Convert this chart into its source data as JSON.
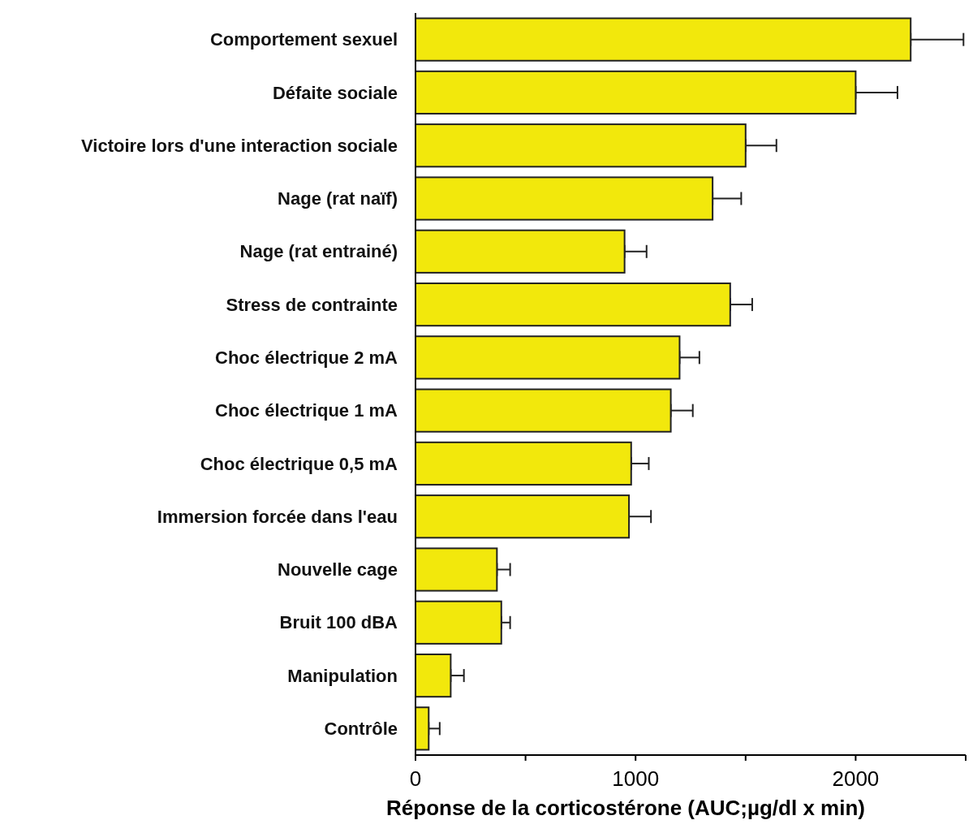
{
  "chart_data": {
    "type": "bar",
    "orientation": "horizontal",
    "xlabel": "Réponse de la corticostérone (AUC;µg/dl x min)",
    "categories": [
      "Comportement sexuel",
      "Défaite sociale",
      "Victoire lors d'une interaction sociale",
      "Nage (rat naïf)",
      "Nage (rat entrainé)",
      "Stress de contrainte",
      "Choc électrique 2 mA",
      "Choc électrique 1 mA",
      "Choc électrique 0,5 mA",
      "Immersion  forcée dans l'eau",
      "Nouvelle cage",
      "Bruit 100 dBA",
      "Manipulation",
      "Contrôle"
    ],
    "values": [
      2250,
      2000,
      1500,
      1350,
      950,
      1430,
      1200,
      1160,
      980,
      970,
      370,
      390,
      160,
      60
    ],
    "errors": [
      [
        2250,
        2490
      ],
      [
        2000,
        2190
      ],
      [
        1500,
        1640
      ],
      [
        1350,
        1480
      ],
      [
        950,
        1050
      ],
      [
        1430,
        1530
      ],
      [
        1200,
        1290
      ],
      [
        1160,
        1260
      ],
      [
        980,
        1060
      ],
      [
        970,
        1070
      ],
      [
        370,
        430
      ],
      [
        390,
        430
      ],
      [
        160,
        220
      ],
      [
        60,
        110
      ]
    ],
    "color": "#f2e80c",
    "xlim": [
      0,
      2500
    ],
    "xticks": [
      0,
      {
        "value": 500,
        "label": null
      },
      1000,
      {
        "value": 1500,
        "label": null
      },
      2000,
      {
        "value": 2500,
        "label": null
      }
    ],
    "grid": false
  }
}
